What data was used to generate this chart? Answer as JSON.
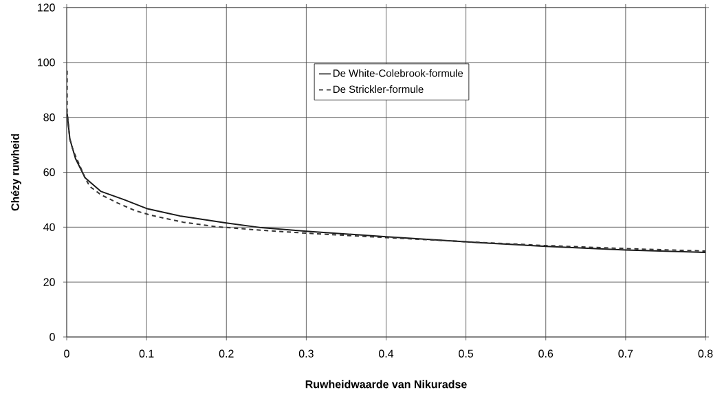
{
  "chart_data": {
    "type": "line",
    "xlabel": "Ruwheidwaarde van Nikuradse",
    "ylabel": "Chézy ruwheid",
    "xlim": [
      0,
      0.8
    ],
    "ylim": [
      0,
      120
    ],
    "xticks": [
      0,
      0.1,
      0.2,
      0.3,
      0.4,
      0.5,
      0.6,
      0.7,
      0.8
    ],
    "yticks": [
      0,
      20,
      40,
      60,
      80,
      100,
      120
    ],
    "grid": true,
    "legend": "top right",
    "marker": "none",
    "series": [
      {
        "name": "De White-Colebrook-formule",
        "color": "#1a1a1a",
        "line_style": "solid",
        "x": [
          0.0005,
          0.004,
          0.011,
          0.023,
          0.043,
          0.072,
          0.1,
          0.143,
          0.2,
          0.244,
          0.3,
          0.4,
          0.519,
          0.6,
          0.7,
          0.8
        ],
        "values": [
          81.5,
          72,
          65,
          58,
          53,
          50,
          46.8,
          44,
          41.5,
          39.8,
          38.5,
          36.5,
          34.3,
          33,
          31.7,
          30.8
        ]
      },
      {
        "name": "De Strickler-formule",
        "color": "#333333",
        "line_style": "dashed",
        "x": [
          0.0005,
          0.0005,
          0.004,
          0.008,
          0.023,
          0.029,
          0.043,
          0.066,
          0.086,
          0.106,
          0.146,
          0.186,
          0.238,
          0.3,
          0.4,
          0.5,
          0.6,
          0.7,
          0.8
        ],
        "values": [
          97,
          82,
          72,
          68,
          58,
          54.8,
          51.8,
          48.5,
          46,
          44.3,
          41.8,
          40.2,
          39,
          37.8,
          36.2,
          34.7,
          33.3,
          32.2,
          31.3
        ]
      }
    ]
  }
}
